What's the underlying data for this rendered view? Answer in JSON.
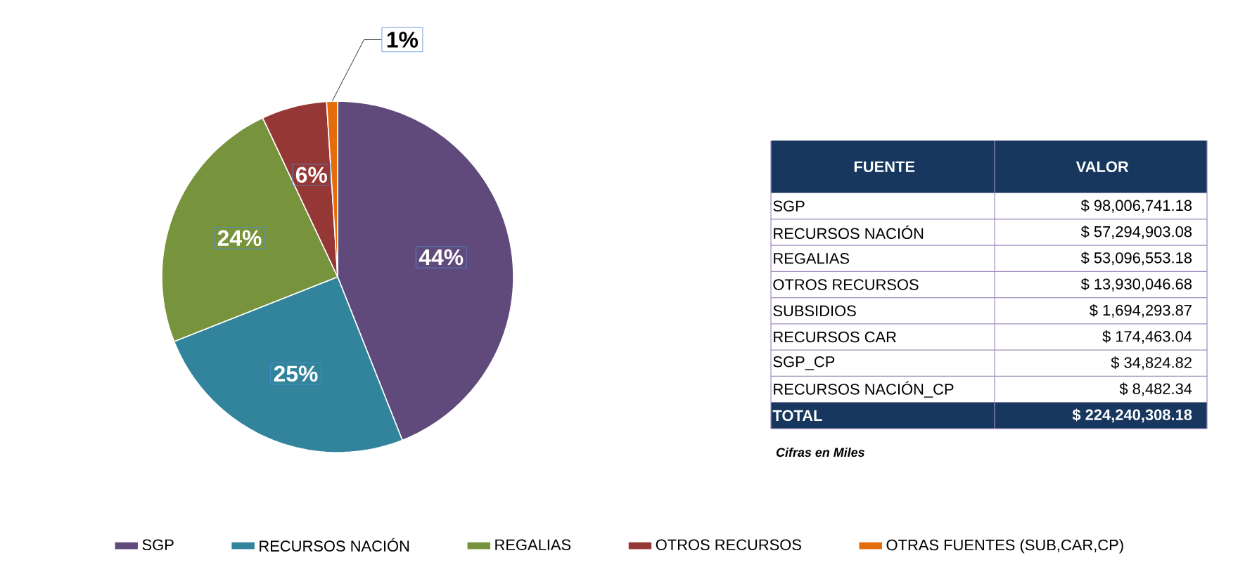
{
  "chart_data": [
    {
      "type": "pie",
      "categories": [
        "SGP",
        "RECURSOS NACIÓN",
        "REGALIAS",
        "OTROS RECURSOS",
        "OTRAS FUENTES (SUB,CAR,CP)"
      ],
      "values": [
        44,
        25,
        24,
        6,
        1
      ],
      "value_labels": [
        "44%",
        "25%",
        "24%",
        "6%",
        "1%"
      ],
      "colors": [
        "#604a7b",
        "#31849b",
        "#77933c",
        "#953735",
        "#e46c0a"
      ],
      "legend": "bottom"
    },
    {
      "type": "other",
      "categories": [
        "SGP",
        "RECURSOS NACIÓN",
        "REGALIAS",
        "OTROS RECURSOS",
        "SUBSIDIOS",
        "RECURSOS CAR",
        "SGP_CP",
        "RECURSOS NACIÓN_CP",
        "TOTAL"
      ],
      "values": [
        98006741.18,
        57294903.08,
        53096553.18,
        13930046.68,
        1694293.87,
        174463.04,
        34824.82,
        8482.34,
        224240308.18
      ],
      "value_labels": [
        "$ 98,006,741.18",
        "$ 57,294,903.08",
        "$ 53,096,553.18",
        "$ 13,930,046.68",
        "$ 1,694,293.87",
        "$ 174,463.04",
        "$ 34,824.82",
        "$ 8,482.34",
        "$ 224,240,308.18"
      ],
      "annotations": [
        "FUENTE",
        "VALOR",
        "Cifras en Miles"
      ]
    }
  ]
}
